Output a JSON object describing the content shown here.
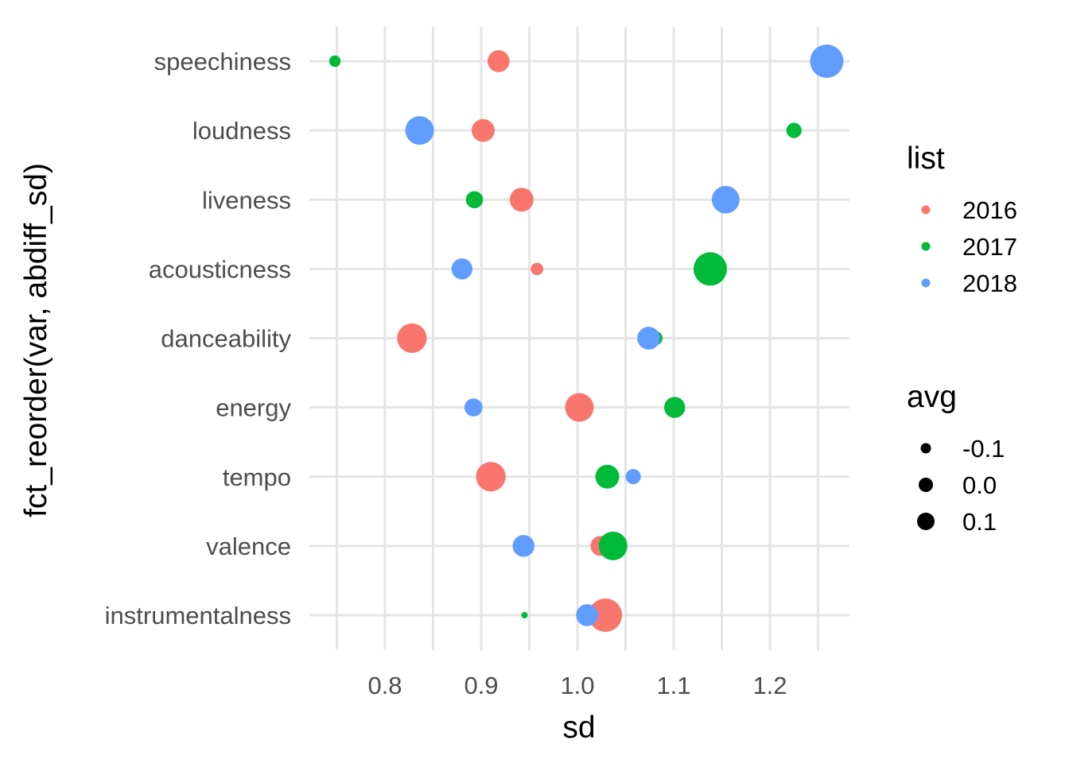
{
  "chart_data": {
    "type": "scatter",
    "title": "",
    "xlabel": "sd",
    "ylabel": "fct_reorder(var, abdiff_sd)",
    "xlim": [
      0.73,
      1.28
    ],
    "x_ticks": [
      "0.8",
      "0.9",
      "1.0",
      "1.1",
      "1.2"
    ],
    "x_tick_values": [
      0.8,
      0.9,
      1.0,
      1.1,
      1.2
    ],
    "categories": [
      "speechiness",
      "loudness",
      "liveness",
      "acousticness",
      "danceability",
      "energy",
      "tempo",
      "valence",
      "instrumentalness"
    ],
    "grid": true,
    "legend_placement": "right",
    "color_legend": {
      "title": "list",
      "entries": [
        {
          "label": "2016",
          "color": "#F8766D"
        },
        {
          "label": "2017",
          "color": "#00BA38"
        },
        {
          "label": "2018",
          "color": "#619CFF"
        }
      ]
    },
    "size_legend": {
      "title": "avg",
      "entries": [
        {
          "label": "-0.1",
          "value": -0.1
        },
        {
          "label": "0.0",
          "value": 0.0
        },
        {
          "label": "0.1",
          "value": 0.1
        }
      ]
    },
    "series": [
      {
        "name": "2016",
        "color": "#F8766D",
        "points": [
          {
            "category": "speechiness",
            "x": 0.918,
            "avg": -0.02
          },
          {
            "category": "loudness",
            "x": 0.902,
            "avg": -0.01
          },
          {
            "category": "liveness",
            "x": 0.942,
            "avg": 0.0
          },
          {
            "category": "acousticness",
            "x": 0.958,
            "avg": -0.12
          },
          {
            "category": "danceability",
            "x": 0.828,
            "avg": 0.06
          },
          {
            "category": "energy",
            "x": 1.002,
            "avg": 0.05
          },
          {
            "category": "tempo",
            "x": 0.91,
            "avg": 0.06
          },
          {
            "category": "valence",
            "x": 1.024,
            "avg": -0.04
          },
          {
            "category": "instrumentalness",
            "x": 1.029,
            "avg": 0.1
          }
        ]
      },
      {
        "name": "2017",
        "color": "#00BA38",
        "points": [
          {
            "category": "speechiness",
            "x": 0.748,
            "avg": -0.13
          },
          {
            "category": "loudness",
            "x": 1.225,
            "avg": -0.09
          },
          {
            "category": "liveness",
            "x": 0.893,
            "avg": -0.07
          },
          {
            "category": "acousticness",
            "x": 1.138,
            "avg": 0.1
          },
          {
            "category": "danceability",
            "x": 1.081,
            "avg": -0.1
          },
          {
            "category": "energy",
            "x": 1.101,
            "avg": -0.03
          },
          {
            "category": "tempo",
            "x": 1.031,
            "avg": 0.0
          },
          {
            "category": "valence",
            "x": 1.037,
            "avg": 0.05
          },
          {
            "category": "instrumentalness",
            "x": 0.945,
            "avg": -0.25
          }
        ]
      },
      {
        "name": "2018",
        "color": "#619CFF",
        "points": [
          {
            "category": "speechiness",
            "x": 1.259,
            "avg": 0.1
          },
          {
            "category": "loudness",
            "x": 0.836,
            "avg": 0.05
          },
          {
            "category": "liveness",
            "x": 1.154,
            "avg": 0.04
          },
          {
            "category": "acousticness",
            "x": 0.88,
            "avg": -0.03
          },
          {
            "category": "danceability",
            "x": 1.074,
            "avg": -0.01
          },
          {
            "category": "energy",
            "x": 0.892,
            "avg": -0.06
          },
          {
            "category": "tempo",
            "x": 1.058,
            "avg": -0.09
          },
          {
            "category": "valence",
            "x": 0.944,
            "avg": -0.02
          },
          {
            "category": "instrumentalness",
            "x": 1.01,
            "avg": -0.02
          }
        ]
      }
    ]
  }
}
